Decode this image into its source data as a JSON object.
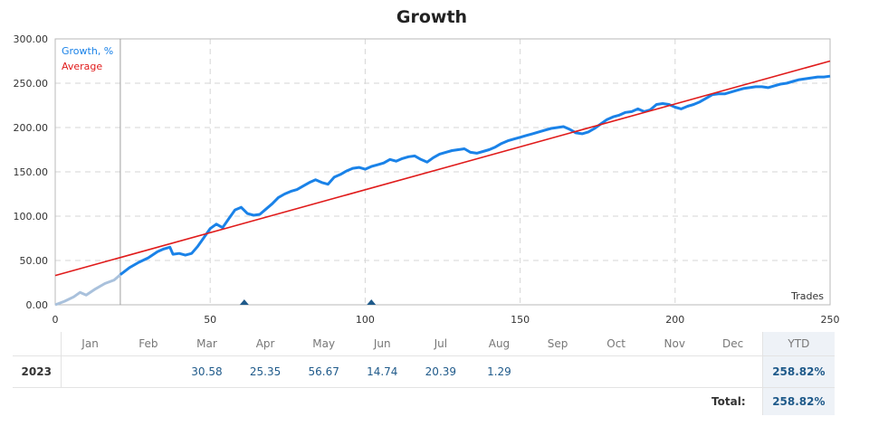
{
  "chart_data": {
    "type": "line",
    "title": "Growth",
    "xlabel": "Trades",
    "ylabel": "",
    "xlim": [
      0,
      250
    ],
    "ylim": [
      0,
      300
    ],
    "x_ticks": [
      "0",
      "50",
      "100",
      "150",
      "200",
      "250"
    ],
    "y_ticks": [
      "0.00",
      "50.00",
      "100.00",
      "150.00",
      "200.00",
      "250.00",
      "300.00"
    ],
    "grid": true,
    "legend": {
      "position": "top-left",
      "entries": [
        "Growth, %",
        "Average"
      ]
    },
    "colors": {
      "growth": "#1a82e8",
      "growth_pre": "#a9c1dc",
      "average": "#e01b1b",
      "marker": "#1f5a8a",
      "divider": "#a0a0a0"
    },
    "divider_x": 21,
    "markers_x": [
      61,
      102
    ],
    "series": [
      {
        "name": "Growth, %",
        "x": [
          0,
          3,
          6,
          8,
          10,
          13,
          16,
          19,
          21,
          24,
          27,
          30,
          33,
          35,
          37,
          38,
          40,
          42,
          44,
          46,
          48,
          50,
          52,
          54,
          56,
          58,
          60,
          62,
          64,
          66,
          68,
          70,
          72,
          74,
          76,
          78,
          80,
          82,
          84,
          86,
          88,
          90,
          92,
          94,
          96,
          98,
          100,
          102,
          104,
          106,
          108,
          110,
          112,
          114,
          116,
          118,
          120,
          122,
          124,
          126,
          128,
          130,
          132,
          134,
          136,
          138,
          140,
          142,
          144,
          146,
          148,
          150,
          152,
          154,
          156,
          158,
          160,
          162,
          164,
          166,
          168,
          170,
          172,
          174,
          176,
          178,
          180,
          182,
          184,
          186,
          188,
          190,
          192,
          194,
          196,
          198,
          200,
          202,
          204,
          206,
          208,
          210,
          212,
          214,
          216,
          218,
          220,
          222,
          224,
          226,
          228,
          230,
          232,
          234,
          236,
          238,
          240,
          242,
          244,
          246,
          248,
          250
        ],
        "values": [
          0,
          4,
          9,
          14,
          11,
          18,
          24,
          28,
          34,
          42,
          48,
          53,
          60,
          63,
          65,
          57,
          58,
          56,
          58,
          66,
          76,
          86,
          91,
          87,
          97,
          107,
          110,
          103,
          101,
          102,
          108,
          114,
          121,
          125,
          128,
          130,
          134,
          138,
          141,
          138,
          136,
          144,
          147,
          151,
          154,
          155,
          153,
          156,
          158,
          160,
          164,
          162,
          165,
          167,
          168,
          164,
          161,
          166,
          170,
          172,
          174,
          175,
          176,
          172,
          171,
          173,
          175,
          178,
          182,
          185,
          187,
          189,
          191,
          193,
          195,
          197,
          199,
          200,
          201,
          198,
          194,
          193,
          195,
          199,
          204,
          209,
          212,
          214,
          217,
          218,
          221,
          218,
          220,
          226,
          227,
          226,
          223,
          221,
          224,
          226,
          229,
          233,
          237,
          238,
          238,
          240,
          242,
          244,
          245,
          246,
          246,
          245,
          247,
          249,
          250,
          252,
          254,
          255,
          256,
          257,
          257,
          258
        ]
      },
      {
        "name": "Average",
        "x": [
          0,
          250
        ],
        "values": [
          33,
          275
        ]
      }
    ]
  },
  "table": {
    "months": [
      "Jan",
      "Feb",
      "Mar",
      "Apr",
      "May",
      "Jun",
      "Jul",
      "Aug",
      "Sep",
      "Oct",
      "Nov",
      "Dec"
    ],
    "ytd_header": "YTD",
    "year": "2023",
    "values": [
      "",
      "",
      "30.58",
      "25.35",
      "56.67",
      "14.74",
      "20.39",
      "1.29",
      "",
      "",
      "",
      ""
    ],
    "ytd_value": "258.82%",
    "total_label": "Total:",
    "total_value": "258.82%"
  }
}
